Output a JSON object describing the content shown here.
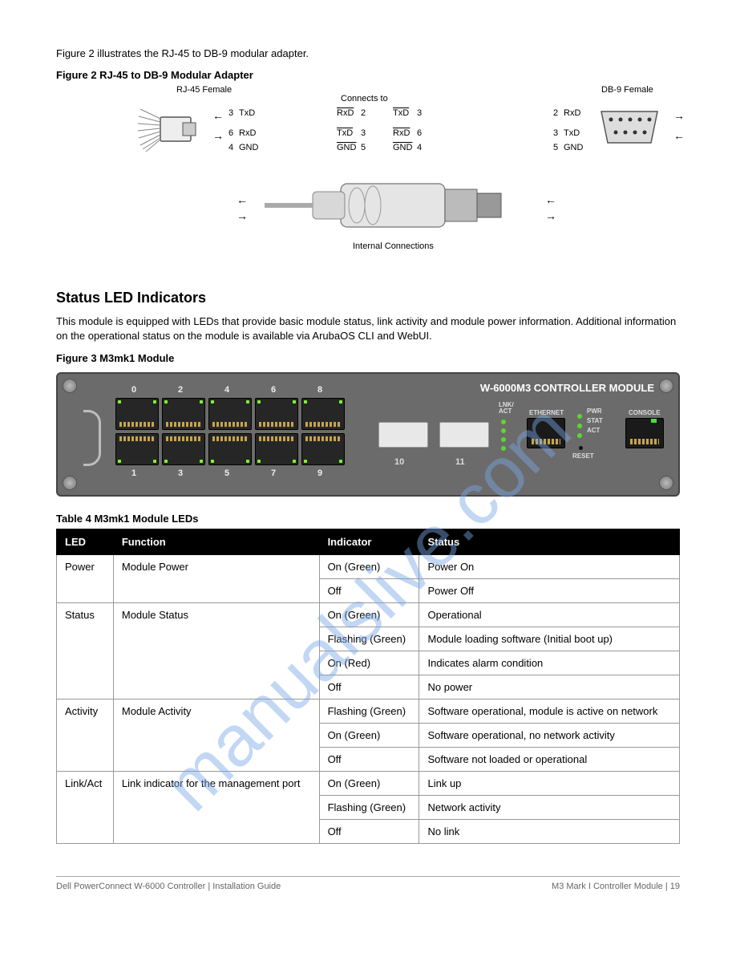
{
  "watermark": "manualslive.com",
  "page": {
    "intro": "Figure 2 illustrates the RJ-45 to DB-9 modular adapter.",
    "fig1": {
      "caption": "Figure 2  RJ-45 to DB-9 Modular Adapter",
      "rj45_female": "RJ-45 Female",
      "db9_female": "DB-9 Female",
      "pins": {
        "rj45_txd_pin": "3",
        "rj45_txd_lbl": "TxD",
        "rj45_rxd_pin": "6",
        "rj45_rxd_lbl": "RxD",
        "rj45_gnd_pin": "4",
        "rj45_gnd_lbl": "GND",
        "connects_to": "Connects to",
        "db9_rxd_pin": "2",
        "db9_rxd_lbl": "RxD",
        "db9_txd_pin": "3",
        "db9_txd_lbl": "TxD",
        "db9_gnd_pin": "5",
        "db9_gnd_lbl": "GND",
        "internal_conn": "Internal Connections"
      }
    },
    "led_heading": "Status LED Indicators",
    "led_body": "This module is equipped with LEDs that provide basic module status, link activity and module power information. Additional information on the operational status on the module is available via ArubaOS CLI and WebUI.",
    "fig2": {
      "caption": "Figure 3  M3mk1 Module",
      "title": "W-6000M3 CONTROLLER MODULE"
    },
    "portnums_top": [
      "0",
      "2",
      "4",
      "6",
      "8"
    ],
    "portnums_bot": [
      "1",
      "3",
      "5",
      "7",
      "9"
    ],
    "sfp_nums": [
      "10",
      "11"
    ],
    "panel_labels": {
      "lnk": "LNK/",
      "act": "ACT",
      "ethernet": "ETHERNET",
      "pwr": "PWR",
      "stat": "STAT",
      "act2": "ACT",
      "reset": "RESET",
      "console": "CONSOLE"
    },
    "table": {
      "caption": "Table 4  M3mk1 Module LEDs",
      "headers": [
        "LED",
        "Function",
        "Indicator",
        "Status"
      ],
      "rows": [
        {
          "led": "Power",
          "fn": "Module Power",
          "ind": "On (Green)",
          "status": "Power On",
          "span": 2
        },
        {
          "ind": "Off",
          "status": "Power Off"
        },
        {
          "led": "Status",
          "fn": "Module Status",
          "ind": "On (Green)",
          "status": "Operational",
          "span": 4
        },
        {
          "ind": "Flashing (Green)",
          "status": "Module loading software (Initial boot up)"
        },
        {
          "ind": "On (Red)",
          "status": "Indicates alarm condition"
        },
        {
          "ind": "Off",
          "status": "No power"
        },
        {
          "led": "Activity",
          "fn": "Module Activity",
          "ind": "Flashing (Green)",
          "status": "Software operational, module is active on network",
          "span": 3
        },
        {
          "ind": "On (Green)",
          "status": "Software operational, no network activity"
        },
        {
          "ind": "Off",
          "status": "Software not loaded or operational"
        },
        {
          "led": "Link/Act",
          "fn": "Link indicator for the management port",
          "ind": "On (Green)",
          "status": "Link up",
          "span": 3
        },
        {
          "ind": "Flashing (Green)",
          "status": "Network activity"
        },
        {
          "ind": "Off",
          "status": "No link"
        }
      ]
    },
    "footer": {
      "left": "Dell PowerConnect W-6000 Controller | Installation Guide",
      "right": "M3 Mark I Controller Module | 19"
    }
  },
  "colors": {
    "panel_bg": "#6b6b6b",
    "port_bg": "#262626",
    "led_green": "#7fff2e",
    "header_bg": "#000000",
    "watermark": "#7aa8e6"
  }
}
